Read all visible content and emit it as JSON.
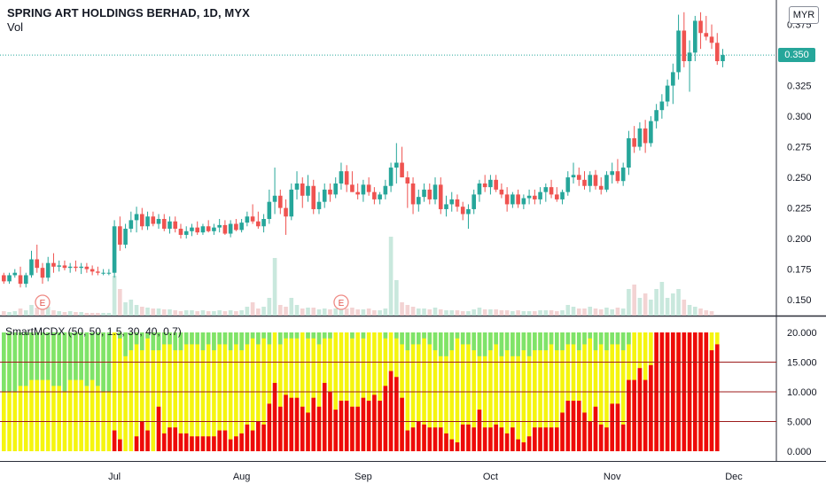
{
  "header": {
    "title": "SPRING ART HOLDINGS BERHAD, 1D, MYX",
    "volume_label": "Vol",
    "currency_button": "MYR"
  },
  "indicator": {
    "label": "SmartMCDX (50, 50, 1.5, 30, 40, 0.7)"
  },
  "colors": {
    "up": "#26a69a",
    "down": "#ef5350",
    "vol_up": "#c9e8dd",
    "vol_down": "#f3d3d3",
    "green_bar": "#7ee36a",
    "yellow_bar": "#f5f50f",
    "red_bar": "#ee0a0a",
    "level_line": "#9c1b1b",
    "last_price_line": "#26a69a"
  },
  "chart_data": [
    {
      "type": "candlestick",
      "title": "SPRING ART HOLDINGS BERHAD, 1D, MYX",
      "y_axis_ticks": [
        "0.150",
        "0.175",
        "0.200",
        "0.225",
        "0.250",
        "0.275",
        "0.300",
        "0.325",
        "0.350",
        "0.375"
      ],
      "ylim": [
        0.137,
        0.395
      ],
      "last_price": "0.350",
      "x_axis_ticks": [
        {
          "label": "Jul",
          "index": 20
        },
        {
          "label": "Aug",
          "index": 43
        },
        {
          "label": "Sep",
          "index": 65
        },
        {
          "label": "Oct",
          "index": 88
        },
        {
          "label": "Nov",
          "index": 110
        },
        {
          "label": "Dec",
          "index": 132
        }
      ],
      "earnings_markers": [
        {
          "label": "E",
          "index": 7
        },
        {
          "label": "E",
          "index": 61
        }
      ],
      "ohlc": [
        [
          0.17,
          0.172,
          0.163,
          0.165
        ],
        [
          0.165,
          0.172,
          0.163,
          0.17
        ],
        [
          0.17,
          0.175,
          0.168,
          0.172
        ],
        [
          0.17,
          0.177,
          0.16,
          0.163
        ],
        [
          0.163,
          0.172,
          0.16,
          0.17
        ],
        [
          0.17,
          0.19,
          0.168,
          0.183
        ],
        [
          0.183,
          0.195,
          0.172,
          0.176
        ],
        [
          0.176,
          0.18,
          0.163,
          0.168
        ],
        [
          0.168,
          0.185,
          0.165,
          0.18
        ],
        [
          0.18,
          0.188,
          0.172,
          0.177
        ],
        [
          0.177,
          0.182,
          0.173,
          0.178
        ],
        [
          0.178,
          0.182,
          0.174,
          0.176
        ],
        [
          0.176,
          0.18,
          0.172,
          0.177
        ],
        [
          0.177,
          0.182,
          0.173,
          0.176
        ],
        [
          0.176,
          0.18,
          0.171,
          0.177
        ],
        [
          0.177,
          0.18,
          0.172,
          0.175
        ],
        [
          0.175,
          0.178,
          0.17,
          0.173
        ],
        [
          0.173,
          0.177,
          0.17,
          0.172
        ],
        [
          0.172,
          0.175,
          0.17,
          0.172
        ],
        [
          0.172,
          0.175,
          0.17,
          0.172
        ],
        [
          0.172,
          0.215,
          0.168,
          0.21
        ],
        [
          0.21,
          0.218,
          0.19,
          0.195
        ],
        [
          0.195,
          0.212,
          0.192,
          0.208
        ],
        [
          0.208,
          0.222,
          0.205,
          0.215
        ],
        [
          0.215,
          0.226,
          0.205,
          0.22
        ],
        [
          0.22,
          0.225,
          0.207,
          0.21
        ],
        [
          0.21,
          0.222,
          0.207,
          0.218
        ],
        [
          0.218,
          0.222,
          0.21,
          0.212
        ],
        [
          0.212,
          0.22,
          0.208,
          0.216
        ],
        [
          0.216,
          0.22,
          0.206,
          0.208
        ],
        [
          0.208,
          0.218,
          0.204,
          0.214
        ],
        [
          0.214,
          0.218,
          0.205,
          0.208
        ],
        [
          0.208,
          0.212,
          0.2,
          0.203
        ],
        [
          0.203,
          0.21,
          0.2,
          0.206
        ],
        [
          0.206,
          0.212,
          0.202,
          0.209
        ],
        [
          0.209,
          0.214,
          0.203,
          0.205
        ],
        [
          0.205,
          0.212,
          0.203,
          0.21
        ],
        [
          0.21,
          0.215,
          0.205,
          0.206
        ],
        [
          0.206,
          0.212,
          0.203,
          0.209
        ],
        [
          0.209,
          0.216,
          0.205,
          0.211
        ],
        [
          0.211,
          0.215,
          0.203,
          0.204
        ],
        [
          0.204,
          0.215,
          0.201,
          0.212
        ],
        [
          0.212,
          0.216,
          0.206,
          0.207
        ],
        [
          0.207,
          0.216,
          0.205,
          0.213
        ],
        [
          0.213,
          0.222,
          0.21,
          0.218
        ],
        [
          0.218,
          0.228,
          0.212,
          0.214
        ],
        [
          0.214,
          0.222,
          0.208,
          0.21
        ],
        [
          0.21,
          0.22,
          0.205,
          0.216
        ],
        [
          0.216,
          0.24,
          0.212,
          0.23
        ],
        [
          0.23,
          0.258,
          0.22,
          0.235
        ],
        [
          0.235,
          0.24,
          0.22,
          0.225
        ],
        [
          0.225,
          0.232,
          0.203,
          0.218
        ],
        [
          0.218,
          0.245,
          0.215,
          0.24
        ],
        [
          0.24,
          0.255,
          0.232,
          0.245
        ],
        [
          0.245,
          0.25,
          0.225,
          0.235
        ],
        [
          0.235,
          0.252,
          0.23,
          0.243
        ],
        [
          0.243,
          0.248,
          0.22,
          0.224
        ],
        [
          0.224,
          0.238,
          0.22,
          0.23
        ],
        [
          0.23,
          0.245,
          0.225,
          0.24
        ],
        [
          0.24,
          0.245,
          0.23,
          0.236
        ],
        [
          0.236,
          0.25,
          0.233,
          0.245
        ],
        [
          0.245,
          0.262,
          0.24,
          0.255
        ],
        [
          0.255,
          0.26,
          0.238,
          0.244
        ],
        [
          0.244,
          0.255,
          0.238,
          0.238
        ],
        [
          0.238,
          0.245,
          0.232,
          0.236
        ],
        [
          0.236,
          0.248,
          0.23,
          0.244
        ],
        [
          0.244,
          0.25,
          0.235,
          0.238
        ],
        [
          0.238,
          0.242,
          0.228,
          0.232
        ],
        [
          0.232,
          0.238,
          0.228,
          0.236
        ],
        [
          0.236,
          0.248,
          0.232,
          0.243
        ],
        [
          0.243,
          0.262,
          0.238,
          0.258
        ],
        [
          0.258,
          0.278,
          0.245,
          0.262
        ],
        [
          0.262,
          0.275,
          0.25,
          0.25
        ],
        [
          0.25,
          0.255,
          0.225,
          0.245
        ],
        [
          0.245,
          0.25,
          0.22,
          0.228
        ],
        [
          0.228,
          0.24,
          0.222,
          0.234
        ],
        [
          0.234,
          0.245,
          0.23,
          0.24
        ],
        [
          0.24,
          0.245,
          0.228,
          0.232
        ],
        [
          0.232,
          0.25,
          0.228,
          0.244
        ],
        [
          0.244,
          0.25,
          0.22,
          0.224
        ],
        [
          0.224,
          0.235,
          0.218,
          0.228
        ],
        [
          0.228,
          0.238,
          0.222,
          0.232
        ],
        [
          0.232,
          0.236,
          0.222,
          0.226
        ],
        [
          0.226,
          0.23,
          0.215,
          0.22
        ],
        [
          0.22,
          0.228,
          0.208,
          0.224
        ],
        [
          0.224,
          0.24,
          0.22,
          0.236
        ],
        [
          0.236,
          0.248,
          0.23,
          0.245
        ],
        [
          0.245,
          0.252,
          0.238,
          0.242
        ],
        [
          0.242,
          0.252,
          0.236,
          0.248
        ],
        [
          0.248,
          0.252,
          0.238,
          0.24
        ],
        [
          0.24,
          0.245,
          0.233,
          0.236
        ],
        [
          0.236,
          0.242,
          0.222,
          0.228
        ],
        [
          0.228,
          0.238,
          0.225,
          0.236
        ],
        [
          0.236,
          0.24,
          0.225,
          0.228
        ],
        [
          0.228,
          0.236,
          0.224,
          0.233
        ],
        [
          0.233,
          0.24,
          0.228,
          0.235
        ],
        [
          0.235,
          0.24,
          0.228,
          0.232
        ],
        [
          0.232,
          0.242,
          0.228,
          0.238
        ],
        [
          0.238,
          0.245,
          0.23,
          0.242
        ],
        [
          0.242,
          0.248,
          0.233,
          0.236
        ],
        [
          0.236,
          0.242,
          0.23,
          0.232
        ],
        [
          0.232,
          0.24,
          0.228,
          0.238
        ],
        [
          0.238,
          0.255,
          0.235,
          0.25
        ],
        [
          0.25,
          0.262,
          0.245,
          0.252
        ],
        [
          0.252,
          0.258,
          0.243,
          0.248
        ],
        [
          0.248,
          0.255,
          0.24,
          0.243
        ],
        [
          0.243,
          0.255,
          0.238,
          0.252
        ],
        [
          0.252,
          0.256,
          0.24,
          0.243
        ],
        [
          0.243,
          0.25,
          0.236,
          0.24
        ],
        [
          0.24,
          0.255,
          0.238,
          0.252
        ],
        [
          0.252,
          0.262,
          0.245,
          0.255
        ],
        [
          0.255,
          0.265,
          0.245,
          0.247
        ],
        [
          0.247,
          0.262,
          0.243,
          0.258
        ],
        [
          0.258,
          0.288,
          0.252,
          0.282
        ],
        [
          0.282,
          0.292,
          0.27,
          0.275
        ],
        [
          0.275,
          0.295,
          0.272,
          0.29
        ],
        [
          0.29,
          0.297,
          0.27,
          0.278
        ],
        [
          0.278,
          0.3,
          0.275,
          0.296
        ],
        [
          0.296,
          0.31,
          0.29,
          0.305
        ],
        [
          0.305,
          0.318,
          0.298,
          0.312
        ],
        [
          0.312,
          0.33,
          0.308,
          0.325
        ],
        [
          0.325,
          0.343,
          0.31,
          0.336
        ],
        [
          0.336,
          0.383,
          0.33,
          0.37
        ],
        [
          0.37,
          0.385,
          0.34,
          0.345
        ],
        [
          0.345,
          0.362,
          0.32,
          0.352
        ],
        [
          0.352,
          0.382,
          0.345,
          0.378
        ],
        [
          0.378,
          0.385,
          0.355,
          0.368
        ],
        [
          0.368,
          0.382,
          0.362,
          0.365
        ],
        [
          0.365,
          0.375,
          0.355,
          0.36
        ],
        [
          0.36,
          0.368,
          0.342,
          0.345
        ],
        [
          0.345,
          0.355,
          0.34,
          0.35
        ]
      ],
      "volume": [
        0.5,
        0.4,
        0.5,
        0.8,
        0.6,
        1.2,
        0.9,
        0.8,
        1.0,
        0.6,
        0.5,
        0.4,
        0.5,
        0.4,
        0.4,
        0.3,
        0.3,
        0.3,
        0.3,
        0.3,
        4.5,
        3.0,
        1.5,
        1.8,
        1.2,
        1.0,
        0.9,
        0.8,
        0.8,
        0.7,
        0.7,
        0.6,
        0.5,
        0.6,
        0.6,
        0.5,
        0.6,
        0.5,
        0.5,
        0.6,
        0.5,
        0.6,
        0.5,
        0.6,
        1.0,
        1.5,
        0.8,
        1.0,
        2.0,
        6.5,
        1.2,
        1.0,
        2.0,
        1.2,
        0.8,
        0.9,
        0.9,
        0.7,
        0.8,
        0.7,
        0.8,
        1.5,
        0.8,
        0.9,
        0.7,
        0.7,
        0.8,
        0.6,
        0.6,
        0.8,
        8.9,
        4.0,
        1.5,
        1.2,
        1.0,
        0.8,
        0.8,
        0.7,
        0.9,
        0.7,
        0.6,
        0.6,
        0.6,
        0.5,
        0.5,
        0.7,
        0.9,
        0.7,
        0.7,
        0.7,
        0.6,
        0.6,
        0.5,
        0.6,
        0.5,
        0.5,
        0.5,
        0.6,
        0.6,
        0.6,
        0.5,
        0.6,
        1.2,
        1.0,
        0.8,
        0.8,
        1.0,
        0.8,
        0.7,
        0.9,
        0.7,
        0.9,
        0.8,
        3.0,
        3.5,
        2.0,
        2.5,
        1.8,
        3.0,
        3.8,
        2.0,
        2.5,
        3.0,
        1.8,
        1.2,
        1.0,
        0.8,
        0.6,
        0.5
      ]
    },
    {
      "type": "bar",
      "title": "SmartMCDX (50, 50, 1.5, 30, 40, 0.7)",
      "y_axis_ticks": [
        "0.000",
        "5.000",
        "10.000",
        "15.000",
        "20.000"
      ],
      "ylim": [
        0,
        20
      ],
      "levels": [
        5,
        10,
        15
      ],
      "series": [
        {
          "name": "green",
          "stack_from_top": true,
          "values": [
            10,
            10,
            10,
            9,
            9,
            8,
            8,
            8,
            8,
            9,
            9,
            10,
            8,
            8,
            8,
            9,
            8,
            9,
            10,
            10,
            0,
            1,
            4,
            3,
            2,
            3,
            1,
            3,
            3,
            2,
            2,
            3,
            3,
            2,
            2,
            2,
            3,
            2,
            3,
            2,
            2,
            3,
            2,
            3,
            2,
            1,
            2,
            1,
            2,
            0,
            2,
            1,
            1,
            1,
            0,
            1,
            1,
            2,
            1,
            1,
            0,
            0,
            0,
            1,
            0,
            1,
            0,
            0,
            0,
            1,
            0,
            1,
            2,
            3,
            2,
            2,
            1,
            2,
            3,
            4,
            4,
            3,
            1,
            2,
            2,
            3,
            4,
            4,
            3,
            2,
            4,
            3,
            4,
            4,
            3,
            4,
            3,
            3,
            3,
            2,
            3,
            3,
            2,
            2,
            3,
            2,
            1,
            3,
            2,
            3,
            2,
            2,
            3,
            2,
            0,
            0,
            0,
            0,
            0,
            0,
            0,
            0,
            0,
            0,
            0,
            0,
            0,
            0,
            0
          ]
        },
        {
          "name": "red",
          "values": [
            0,
            0,
            0,
            0,
            0,
            0,
            0,
            0,
            0,
            0,
            0,
            0,
            0,
            0,
            0,
            0,
            0,
            0,
            0,
            0,
            3.5,
            2.0,
            0,
            0,
            2.5,
            5.0,
            3.5,
            0,
            7.5,
            3.0,
            4.0,
            4.0,
            3.0,
            3.0,
            2.5,
            2.5,
            2.5,
            2.5,
            2.5,
            3.5,
            3.5,
            2.0,
            2.5,
            3.0,
            4.5,
            3.5,
            5.0,
            4.5,
            8.0,
            11.5,
            7.5,
            9.5,
            9.0,
            9.0,
            7.5,
            6.5,
            9.0,
            7.5,
            11.5,
            10.0,
            7.0,
            8.5,
            8.5,
            7.5,
            7.5,
            9.0,
            8.5,
            9.5,
            8.5,
            11.0,
            13.5,
            12.5,
            9.0,
            3.5,
            4.0,
            5.0,
            4.5,
            4.0,
            4.0,
            4.0,
            3.0,
            2.0,
            1.5,
            4.5,
            4.5,
            4.0,
            7.0,
            4.0,
            4.0,
            4.5,
            4.0,
            3.0,
            4.0,
            2.0,
            1.5,
            2.5,
            4.0,
            4.0,
            4.0,
            4.0,
            4.0,
            6.5,
            8.5,
            8.5,
            8.5,
            6.5,
            5.0,
            7.5,
            4.5,
            4.0,
            8.0,
            8.0,
            4.5,
            12.0,
            12.0,
            14.0,
            12.0,
            14.5,
            20,
            20,
            20,
            20,
            20,
            20,
            20,
            20,
            20,
            20,
            17.0,
            18.0
          ]
        }
      ]
    }
  ]
}
